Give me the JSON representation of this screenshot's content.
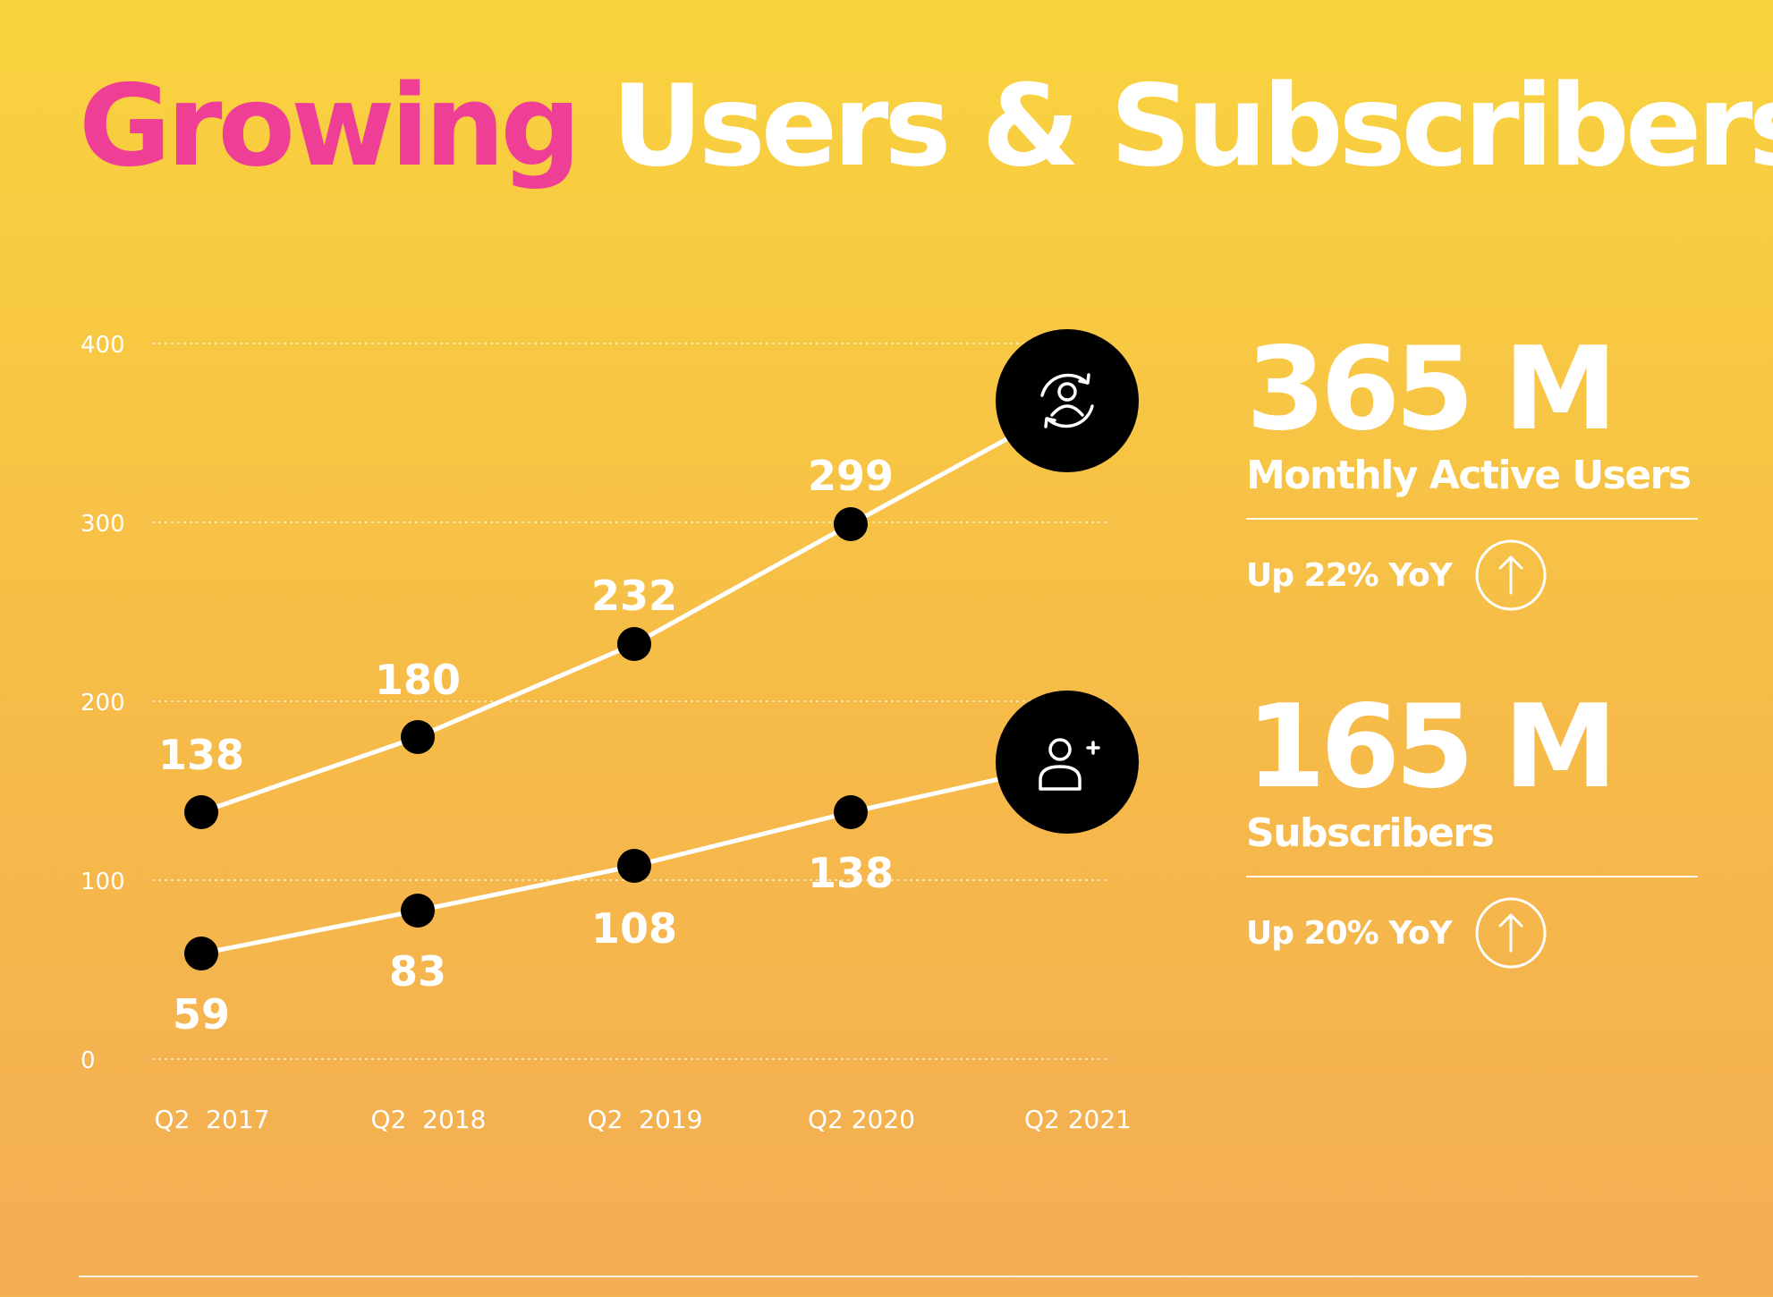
{
  "title": {
    "highlight": "Growing",
    "rest": "Users & Subscribers"
  },
  "chart_data": {
    "type": "line",
    "categories": [
      "Q2  2017",
      "Q2  2018",
      "Q2  2019",
      "Q2 2020",
      "Q2 2021"
    ],
    "y_ticks": [
      "0",
      "100",
      "200",
      "300",
      "400"
    ],
    "ylim": [
      0,
      400
    ],
    "grid": true,
    "series": [
      {
        "name": "Monthly Active Users",
        "values": [
          138,
          180,
          232,
          299,
          365
        ],
        "labels": [
          "138",
          "180",
          "232",
          "299",
          ""
        ]
      },
      {
        "name": "Subscribers",
        "values": [
          59,
          83,
          108,
          138,
          165
        ],
        "labels": [
          "59",
          "83",
          "108",
          "138",
          ""
        ]
      }
    ],
    "end_icons": [
      "users-cycle-icon",
      "add-user-icon"
    ]
  },
  "stats": [
    {
      "value": "365 M",
      "label": "Monthly Active Users",
      "yoy": "Up 22% YoY",
      "icon": "arrow-up-icon"
    },
    {
      "value": "165 M",
      "label": "Subscribers",
      "yoy": "Up 20% YoY",
      "icon": "arrow-up-icon"
    }
  ],
  "colors": {
    "highlight": "#ef3e96",
    "marker": "#000000",
    "line": "#ffffff"
  }
}
